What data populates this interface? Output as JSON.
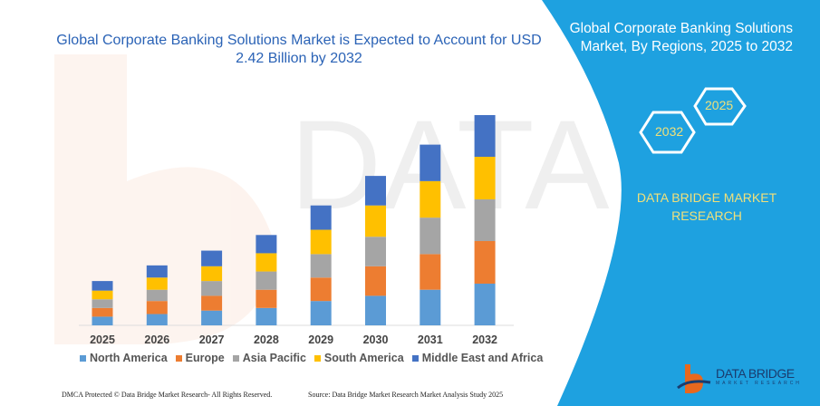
{
  "title": "Global Corporate Banking Solutions Market is Expected to Account for USD 2.42 Billion by 2032",
  "side_panel": {
    "title": "Global Corporate Banking Solutions Market, By Regions, 2025 to 2032",
    "hex_start": "2025",
    "hex_end": "2032",
    "brand": "DATA BRIDGE MARKET RESEARCH",
    "logo_text": "DATA BRIDGE",
    "logo_sub": "MARKET RESEARCH",
    "color": "#1ea1e0"
  },
  "footer": {
    "left": "DMCA Protected © Data Bridge Market Research- All Rights Reserved.",
    "right": "Source: Data Bridge Market Research Market Analysis Study 2025"
  },
  "chart_data": {
    "type": "bar",
    "stacked": true,
    "title": "Global Corporate Banking Solutions Market is Expected to Account for USD 2.42 Billion by 2032",
    "xlabel": "",
    "ylabel": "",
    "ylim": [
      0,
      2.42
    ],
    "grid": false,
    "legend": "bottom",
    "categories": [
      "2025",
      "2026",
      "2027",
      "2028",
      "2029",
      "2030",
      "2031",
      "2032"
    ],
    "series": [
      {
        "name": "North America",
        "color": "#5b9bd5",
        "values": [
          0.1,
          0.13,
          0.17,
          0.2,
          0.28,
          0.34,
          0.41,
          0.48
        ]
      },
      {
        "name": "Europe",
        "color": "#ed7d31",
        "values": [
          0.1,
          0.15,
          0.17,
          0.21,
          0.27,
          0.34,
          0.41,
          0.49
        ]
      },
      {
        "name": "Asia Pacific",
        "color": "#a5a5a5",
        "values": [
          0.1,
          0.13,
          0.17,
          0.21,
          0.27,
          0.34,
          0.42,
          0.48
        ]
      },
      {
        "name": "South America",
        "color": "#ffc000",
        "values": [
          0.1,
          0.14,
          0.17,
          0.21,
          0.28,
          0.36,
          0.42,
          0.49
        ]
      },
      {
        "name": "Middle East and Africa",
        "color": "#4472c4",
        "values": [
          0.11,
          0.14,
          0.18,
          0.21,
          0.28,
          0.34,
          0.42,
          0.48
        ]
      }
    ]
  }
}
